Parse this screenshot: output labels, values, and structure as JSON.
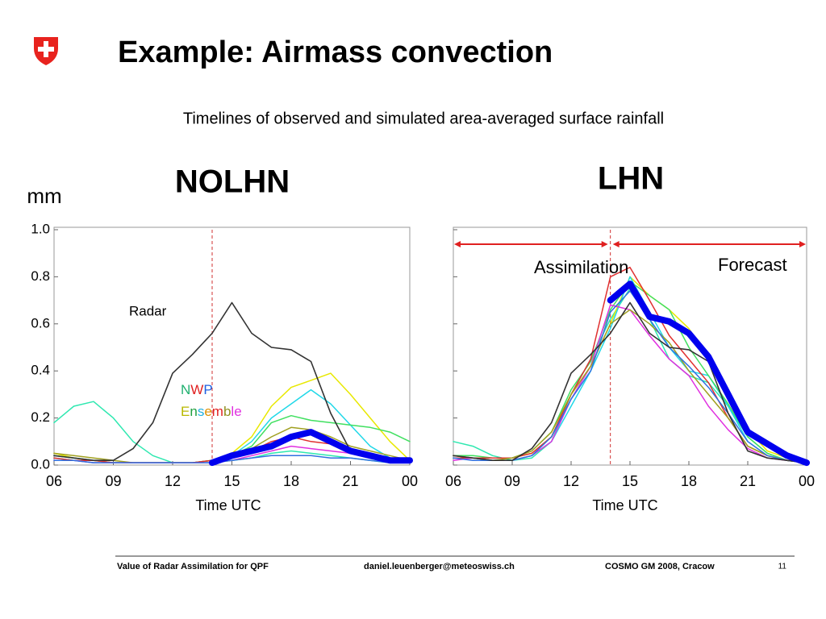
{
  "header": {
    "title": "Example: Airmass convection",
    "subtitle": "Timelines of observed and simulated area-averaged surface rainfall"
  },
  "chart_data": [
    {
      "type": "line",
      "title": "NOLHN",
      "ylabel": "mm",
      "xlabel": "Time UTC",
      "x": [
        6,
        7,
        8,
        9,
        10,
        11,
        12,
        13,
        14,
        15,
        16,
        17,
        18,
        19,
        20,
        21,
        22,
        23,
        24
      ],
      "xlim": [
        6,
        24
      ],
      "xticks": [
        {
          "value": 6,
          "label": "06"
        },
        {
          "value": 9,
          "label": "09"
        },
        12,
        15,
        18,
        21,
        {
          "value": 24,
          "label": "00"
        }
      ],
      "ylim": [
        0,
        1
      ],
      "yticks": [
        {
          "value": 0,
          "label": "0.0"
        },
        0.2,
        0.4,
        0.6,
        0.8,
        {
          "value": 1,
          "label": "1.0"
        }
      ],
      "ytick_labels": true,
      "marker_x": 14,
      "marker_color": "#d03030",
      "annotations": [
        {
          "text": "Radar"
        },
        {
          "text": "NWP",
          "letter_colors": [
            "#20b070",
            "#e02020",
            "#2060e0"
          ]
        },
        {
          "text": "Ensemble",
          "letter_colors": [
            "#b8b800",
            "#20a040",
            "#20b0e0",
            "#e09000",
            "#e02020",
            "#909020",
            "#e030e0",
            "#e030e0"
          ]
        }
      ],
      "series": [
        {
          "color": "#2ee8b0",
          "width": 1.5,
          "values": [
            0.18,
            0.25,
            0.27,
            0.2,
            0.1,
            0.04,
            0.01,
            0.01,
            0.01,
            0.02,
            0.03,
            0.05,
            0.06,
            0.05,
            0.04,
            0.03,
            0.02,
            0.01,
            0.01
          ]
        },
        {
          "color": "#e8e800",
          "width": 1.5,
          "values": [
            0.05,
            0.03,
            0.02,
            0.01,
            0.01,
            0.01,
            0.01,
            0.01,
            0.02,
            0.05,
            0.12,
            0.25,
            0.33,
            0.36,
            0.39,
            0.3,
            0.2,
            0.1,
            0.02
          ]
        },
        {
          "color": "#20d8e8",
          "width": 1.5,
          "values": [
            0.03,
            0.02,
            0.01,
            0.01,
            0.01,
            0.01,
            0.01,
            0.01,
            0.02,
            0.04,
            0.1,
            0.2,
            0.26,
            0.32,
            0.26,
            0.17,
            0.08,
            0.03,
            0.01
          ]
        },
        {
          "color": "#40e060",
          "width": 1.5,
          "values": [
            0.04,
            0.03,
            0.02,
            0.01,
            0.01,
            0.01,
            0.01,
            0.01,
            0.02,
            0.04,
            0.08,
            0.18,
            0.21,
            0.19,
            0.18,
            0.17,
            0.16,
            0.14,
            0.1
          ]
        },
        {
          "color": "#a0a020",
          "width": 1.5,
          "values": [
            0.05,
            0.04,
            0.03,
            0.02,
            0.01,
            0.01,
            0.01,
            0.01,
            0.02,
            0.04,
            0.07,
            0.12,
            0.16,
            0.15,
            0.12,
            0.08,
            0.06,
            0.04,
            0.02
          ]
        },
        {
          "color": "#e03030",
          "width": 1.5,
          "values": [
            0.03,
            0.02,
            0.02,
            0.01,
            0.01,
            0.01,
            0.01,
            0.01,
            0.02,
            0.04,
            0.06,
            0.1,
            0.12,
            0.1,
            0.09,
            0.07,
            0.05,
            0.03,
            0.02
          ]
        },
        {
          "color": "#e030e0",
          "width": 1.5,
          "values": [
            0.02,
            0.02,
            0.01,
            0.01,
            0.01,
            0.01,
            0.01,
            0.01,
            0.01,
            0.02,
            0.04,
            0.06,
            0.08,
            0.07,
            0.06,
            0.05,
            0.04,
            0.03,
            0.02
          ]
        },
        {
          "color": "#3070e0",
          "width": 1.5,
          "values": [
            0.02,
            0.02,
            0.01,
            0.01,
            0.01,
            0.01,
            0.01,
            0.01,
            0.01,
            0.02,
            0.03,
            0.04,
            0.04,
            0.04,
            0.03,
            0.03,
            0.02,
            0.01,
            0.01
          ]
        },
        {
          "name": "Radar",
          "color": "#333333",
          "width": 1.6,
          "values": [
            0.04,
            0.03,
            0.02,
            0.02,
            0.07,
            0.18,
            0.39,
            0.47,
            0.56,
            0.69,
            0.56,
            0.5,
            0.49,
            0.44,
            0.22,
            0.06,
            0.03,
            0.02,
            0.01
          ]
        },
        {
          "color": "#0000ee",
          "width": 8,
          "values": [
            null,
            null,
            null,
            null,
            null,
            null,
            null,
            null,
            0.01,
            0.04,
            0.06,
            0.08,
            0.12,
            0.14,
            0.1,
            0.06,
            0.04,
            0.02,
            0.02
          ]
        }
      ]
    },
    {
      "type": "line",
      "title": "LHN",
      "xlabel": "Time UTC",
      "x": [
        6,
        7,
        8,
        9,
        10,
        11,
        12,
        13,
        14,
        15,
        16,
        17,
        18,
        19,
        20,
        21,
        22,
        23,
        24
      ],
      "xlim": [
        6,
        24
      ],
      "xticks": [
        {
          "value": 6,
          "label": "06"
        },
        {
          "value": 9,
          "label": "09"
        },
        12,
        15,
        18,
        21,
        {
          "value": 24,
          "label": "00"
        }
      ],
      "ylim": [
        0,
        1
      ],
      "yticks": [
        {
          "value": 0,
          "label": "0.0"
        },
        0.2,
        0.4,
        0.6,
        0.8,
        {
          "value": 1,
          "label": "1.0"
        }
      ],
      "ytick_labels": false,
      "marker_x": 14,
      "marker_color": "#d03030",
      "annotations": [
        {
          "text": "Assimilation",
          "color": "#e02020"
        },
        {
          "text": "Forecast",
          "color": "#e02020"
        }
      ],
      "series": [
        {
          "color": "#2ee8b0",
          "width": 1.5,
          "values": [
            0.1,
            0.08,
            0.04,
            0.02,
            0.03,
            0.1,
            0.3,
            0.45,
            0.62,
            0.75,
            0.62,
            0.45,
            0.38,
            0.35,
            0.25,
            0.12,
            0.05,
            0.02,
            0.01
          ]
        },
        {
          "color": "#e8e800",
          "width": 1.5,
          "values": [
            0.04,
            0.03,
            0.03,
            0.03,
            0.05,
            0.12,
            0.3,
            0.42,
            0.6,
            0.8,
            0.72,
            0.66,
            0.58,
            0.45,
            0.3,
            0.15,
            0.06,
            0.03,
            0.01
          ]
        },
        {
          "color": "#20d8e8",
          "width": 1.5,
          "values": [
            0.03,
            0.03,
            0.02,
            0.02,
            0.04,
            0.1,
            0.25,
            0.4,
            0.58,
            0.8,
            0.65,
            0.5,
            0.4,
            0.38,
            0.25,
            0.1,
            0.04,
            0.02,
            0.01
          ]
        },
        {
          "color": "#40e060",
          "width": 1.5,
          "values": [
            0.04,
            0.04,
            0.03,
            0.03,
            0.06,
            0.14,
            0.32,
            0.44,
            0.66,
            0.78,
            0.72,
            0.66,
            0.5,
            0.38,
            0.26,
            0.12,
            0.05,
            0.02,
            0.01
          ]
        },
        {
          "color": "#e03030",
          "width": 1.5,
          "values": [
            0.03,
            0.03,
            0.03,
            0.03,
            0.05,
            0.12,
            0.3,
            0.45,
            0.8,
            0.84,
            0.7,
            0.55,
            0.45,
            0.35,
            0.2,
            0.08,
            0.04,
            0.02,
            0.01
          ]
        },
        {
          "color": "#e030e0",
          "width": 1.5,
          "values": [
            0.02,
            0.03,
            0.02,
            0.02,
            0.04,
            0.1,
            0.28,
            0.42,
            0.68,
            0.66,
            0.55,
            0.45,
            0.38,
            0.25,
            0.15,
            0.07,
            0.03,
            0.02,
            0.01
          ]
        },
        {
          "color": "#a0a020",
          "width": 1.5,
          "values": [
            0.04,
            0.03,
            0.02,
            0.03,
            0.06,
            0.14,
            0.3,
            0.42,
            0.6,
            0.66,
            0.6,
            0.52,
            0.4,
            0.3,
            0.2,
            0.08,
            0.04,
            0.02,
            0.01
          ]
        },
        {
          "color": "#3070e0",
          "width": 1.5,
          "values": [
            0.03,
            0.02,
            0.02,
            0.02,
            0.04,
            0.12,
            0.28,
            0.4,
            0.65,
            0.74,
            0.62,
            0.5,
            0.42,
            0.33,
            0.22,
            0.1,
            0.04,
            0.02,
            0.01
          ]
        },
        {
          "name": "Radar",
          "color": "#333333",
          "width": 1.6,
          "values": [
            0.04,
            0.03,
            0.02,
            0.02,
            0.07,
            0.18,
            0.39,
            0.47,
            0.56,
            0.69,
            0.56,
            0.5,
            0.49,
            0.44,
            0.22,
            0.06,
            0.03,
            0.02,
            0.01
          ]
        },
        {
          "color": "#0000ee",
          "width": 8,
          "values": [
            null,
            null,
            null,
            null,
            null,
            null,
            null,
            null,
            0.7,
            0.77,
            0.63,
            0.61,
            0.56,
            0.46,
            0.3,
            0.14,
            0.09,
            0.04,
            0.01
          ]
        }
      ]
    }
  ],
  "footer": {
    "left": "Value of Radar Assimilation for QPF",
    "center": "daniel.leuenberger@meteoswiss.ch",
    "right": "COSMO GM 2008, Cracow",
    "page": "11"
  }
}
